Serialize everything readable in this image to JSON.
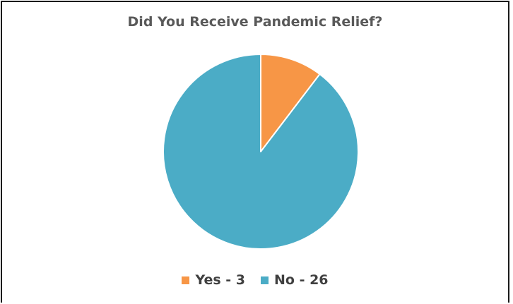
{
  "chart_data": {
    "type": "pie",
    "title": "Did You Receive Pandemic Relief?",
    "slices": [
      {
        "label": "Yes - 3",
        "value": 3,
        "color": "#F79646"
      },
      {
        "label": "No - 26",
        "value": 26,
        "color": "#4BACC6"
      }
    ],
    "legend_position": "bottom",
    "slice_border_color": "#ffffff"
  }
}
